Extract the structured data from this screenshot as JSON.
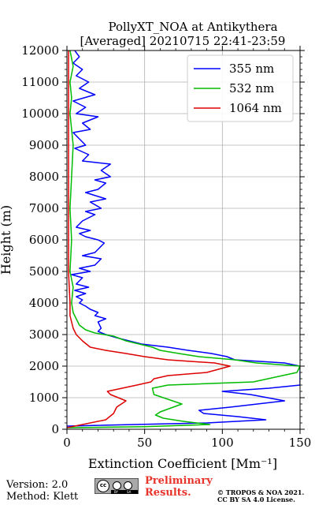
{
  "chart_data": {
    "type": "line",
    "title": "PollyXT_NOA at Antikythera",
    "subtitle": "[Averaged] 20210715 22:41-23:59",
    "xlabel": "Extinction Coefficient [Mm⁻¹]",
    "ylabel": "Height (m)",
    "xlim": [
      0,
      150
    ],
    "ylim": [
      0,
      12000
    ],
    "xticks": [
      "0",
      "50",
      "100",
      "150"
    ],
    "yticks": [
      "0",
      "1000",
      "2000",
      "3000",
      "4000",
      "5000",
      "6000",
      "7000",
      "8000",
      "9000",
      "10000",
      "11000",
      "12000"
    ],
    "grid": true,
    "legend_position": "top-right",
    "series": [
      {
        "name": "355 nm",
        "color": "#0000ff",
        "points": [
          [
            0,
            100
          ],
          [
            90,
            200
          ],
          [
            128,
            300
          ],
          [
            110,
            400
          ],
          [
            88,
            500
          ],
          [
            85,
            600
          ],
          [
            105,
            700
          ],
          [
            140,
            900
          ],
          [
            118,
            1100
          ],
          [
            100,
            1200
          ],
          [
            130,
            1300
          ],
          [
            150,
            1400
          ],
          [
            150,
            1600
          ],
          [
            150,
            1800
          ],
          [
            150,
            2000
          ],
          [
            140,
            2100
          ],
          [
            108,
            2200
          ],
          [
            103,
            2300
          ],
          [
            93,
            2400
          ],
          [
            78,
            2500
          ],
          [
            65,
            2600
          ],
          [
            48,
            2700
          ],
          [
            40,
            2800
          ],
          [
            32,
            2900
          ],
          [
            25,
            3000
          ],
          [
            20,
            3100
          ],
          [
            22,
            3200
          ],
          [
            20,
            3400
          ],
          [
            25,
            3500
          ],
          [
            18,
            3600
          ],
          [
            20,
            3700
          ],
          [
            15,
            3800
          ],
          [
            12,
            3900
          ],
          [
            8,
            4000
          ],
          [
            10,
            4100
          ],
          [
            6,
            4200
          ],
          [
            12,
            4300
          ],
          [
            5,
            4400
          ],
          [
            14,
            4500
          ],
          [
            6,
            4600
          ],
          [
            10,
            4800
          ],
          [
            3,
            4900
          ],
          [
            15,
            5000
          ],
          [
            8,
            5100
          ],
          [
            18,
            5200
          ],
          [
            20,
            5300
          ],
          [
            22,
            5400
          ],
          [
            10,
            5500
          ],
          [
            18,
            5600
          ],
          [
            20,
            5700
          ],
          [
            22,
            5800
          ],
          [
            24,
            5900
          ],
          [
            20,
            6000
          ],
          [
            12,
            6100
          ],
          [
            8,
            6200
          ],
          [
            15,
            6300
          ],
          [
            6,
            6400
          ],
          [
            10,
            6600
          ],
          [
            18,
            6800
          ],
          [
            12,
            6900
          ],
          [
            22,
            7000
          ],
          [
            15,
            7200
          ],
          [
            25,
            7300
          ],
          [
            12,
            7500
          ],
          [
            20,
            7600
          ],
          [
            25,
            7800
          ],
          [
            18,
            7900
          ],
          [
            28,
            8000
          ],
          [
            22,
            8200
          ],
          [
            28,
            8400
          ],
          [
            10,
            8500
          ],
          [
            14,
            8700
          ],
          [
            5,
            8900
          ],
          [
            12,
            9000
          ],
          [
            8,
            9200
          ],
          [
            4,
            9400
          ],
          [
            15,
            9500
          ],
          [
            10,
            9700
          ],
          [
            20,
            9900
          ],
          [
            6,
            10000
          ],
          [
            12,
            10200
          ],
          [
            4,
            10400
          ],
          [
            18,
            10600
          ],
          [
            8,
            10800
          ],
          [
            14,
            11000
          ],
          [
            6,
            11200
          ],
          [
            10,
            11400
          ],
          [
            4,
            11600
          ],
          [
            8,
            11800
          ],
          [
            5,
            12000
          ]
        ]
      },
      {
        "name": "532 nm",
        "color": "#00bb00",
        "points": [
          [
            0,
            50
          ],
          [
            50,
            80
          ],
          [
            92,
            150
          ],
          [
            75,
            250
          ],
          [
            62,
            350
          ],
          [
            57,
            450
          ],
          [
            60,
            550
          ],
          [
            74,
            800
          ],
          [
            56,
            1100
          ],
          [
            55,
            1300
          ],
          [
            65,
            1400
          ],
          [
            120,
            1500
          ],
          [
            148,
            1800
          ],
          [
            150,
            2000
          ],
          [
            122,
            2100
          ],
          [
            108,
            2200
          ],
          [
            85,
            2300
          ],
          [
            72,
            2400
          ],
          [
            60,
            2500
          ],
          [
            55,
            2600
          ],
          [
            38,
            2800
          ],
          [
            30,
            2950
          ],
          [
            18,
            3050
          ],
          [
            12,
            3150
          ],
          [
            8,
            3300
          ],
          [
            6,
            3500
          ],
          [
            4,
            3700
          ],
          [
            3,
            4000
          ],
          [
            4,
            4500
          ],
          [
            2,
            5000
          ],
          [
            3,
            6000
          ],
          [
            2,
            7000
          ],
          [
            3,
            8000
          ],
          [
            4,
            9000
          ],
          [
            2,
            10000
          ],
          [
            3,
            10500
          ],
          [
            2,
            11000
          ],
          [
            4,
            11500
          ],
          [
            2,
            12000
          ]
        ]
      },
      {
        "name": "1064 nm",
        "color": "#dd0000",
        "points": [
          [
            0,
            50
          ],
          [
            25,
            300
          ],
          [
            30,
            500
          ],
          [
            32,
            700
          ],
          [
            38,
            900
          ],
          [
            28,
            1100
          ],
          [
            26,
            1200
          ],
          [
            45,
            1400
          ],
          [
            54,
            1500
          ],
          [
            56,
            1600
          ],
          [
            65,
            1700
          ],
          [
            90,
            1800
          ],
          [
            105,
            2000
          ],
          [
            95,
            2100
          ],
          [
            65,
            2200
          ],
          [
            50,
            2300
          ],
          [
            38,
            2400
          ],
          [
            25,
            2500
          ],
          [
            15,
            2600
          ],
          [
            10,
            2800
          ],
          [
            6,
            3000
          ],
          [
            4,
            3200
          ],
          [
            3,
            3400
          ],
          [
            2,
            3600
          ],
          [
            2,
            4000
          ],
          [
            1,
            5000
          ],
          [
            1,
            6000
          ],
          [
            1,
            7000
          ],
          [
            1,
            8000
          ],
          [
            1,
            9000
          ],
          [
            1,
            10000
          ],
          [
            1,
            11000
          ],
          [
            1,
            12000
          ]
        ]
      }
    ]
  },
  "footer": {
    "version": "Version: 2.0",
    "method": "Method: Klett",
    "preliminary": "Preliminary Results.",
    "copyright": "© TROPOS & NOA 2021. CC BY SA 4.0 License.",
    "license_icon": "cc-by-sa-icon"
  }
}
